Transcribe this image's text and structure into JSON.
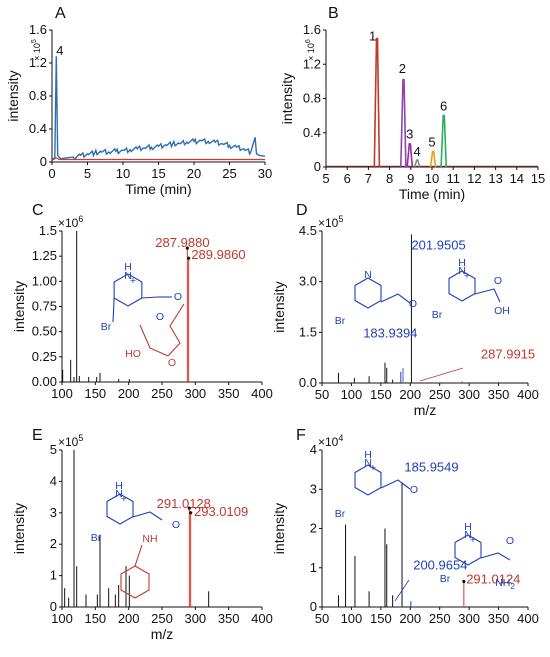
{
  "chart_data": [
    {
      "panel": "A",
      "type": "line",
      "xlabel": "Time (min)",
      "ylabel": "intensity",
      "multiplier": "× 10",
      "multiplier_exp": "5",
      "xlim": [
        0,
        30
      ],
      "ylim": [
        0,
        1.6
      ],
      "xticks": [
        0,
        5,
        10,
        15,
        20,
        25,
        30
      ],
      "yticks": [
        0,
        0.4,
        0.8,
        1.2,
        1.6
      ],
      "ytick_labels": [
        "0",
        "0.4",
        "0.8",
        "1.2",
        "1.6"
      ],
      "peak_labels": [
        {
          "text": "4",
          "x": 0.6,
          "y": 1.3
        }
      ],
      "series": [
        {
          "color": "#2a6fb5",
          "x": [
            0,
            0.4,
            0.6,
            0.8,
            1.2,
            2,
            3,
            4,
            5,
            6,
            7,
            8,
            9,
            10,
            11,
            12,
            13,
            14,
            15,
            16,
            17,
            18,
            19,
            20,
            21,
            22,
            23,
            24,
            25,
            26,
            27,
            28,
            28.6,
            28.8,
            29.2,
            30
          ],
          "y": [
            0.03,
            0.05,
            1.28,
            0.08,
            0.04,
            0.05,
            0.06,
            0.08,
            0.1,
            0.11,
            0.12,
            0.12,
            0.13,
            0.14,
            0.15,
            0.16,
            0.17,
            0.18,
            0.19,
            0.21,
            0.22,
            0.22,
            0.24,
            0.25,
            0.26,
            0.25,
            0.24,
            0.22,
            0.2,
            0.18,
            0.16,
            0.12,
            0.3,
            0.1,
            0.08,
            0.07
          ]
        },
        {
          "color": "#d03a2c",
          "x": [
            0,
            0.6,
            1,
            5,
            10,
            15,
            20,
            25,
            30
          ],
          "y": [
            0.02,
            0.05,
            0.03,
            0.03,
            0.03,
            0.03,
            0.03,
            0.03,
            0.03
          ]
        }
      ]
    },
    {
      "panel": "B",
      "type": "line",
      "xlabel": "Time (min)",
      "ylabel": "intensity",
      "multiplier": "× 10",
      "multiplier_exp": "6",
      "xlim": [
        5,
        15
      ],
      "ylim": [
        0,
        1.6
      ],
      "xticks": [
        5,
        6,
        7,
        8,
        9,
        10,
        11,
        12,
        13,
        14,
        15
      ],
      "yticks": [
        0,
        0.4,
        0.8,
        1.2,
        1.6
      ],
      "ytick_labels": [
        "0",
        "0.4",
        "0.8",
        "1.2",
        "1.6"
      ],
      "series": [
        {
          "label": "1",
          "color": "#c0392b",
          "center": 7.4,
          "height": 1.5,
          "label_x": 7.2,
          "label_y": 1.48
        },
        {
          "label": "2",
          "color": "#8e44ad",
          "center": 8.65,
          "height": 1.02,
          "label_x": 8.6,
          "label_y": 1.1
        },
        {
          "label": "3",
          "color": "#9b2d9b",
          "center": 8.95,
          "height": 0.27,
          "label_x": 8.95,
          "label_y": 0.33
        },
        {
          "label": "4",
          "color": "#7f8c8d",
          "center": 9.3,
          "height": 0.08,
          "label_x": 9.3,
          "label_y": 0.13
        },
        {
          "label": "5",
          "color": "#f39c12",
          "center": 10.05,
          "height": 0.18,
          "label_x": 10.0,
          "label_y": 0.24
        },
        {
          "label": "6",
          "color": "#27ae60",
          "center": 10.55,
          "height": 0.6,
          "label_x": 10.55,
          "label_y": 0.66
        }
      ]
    },
    {
      "panel": "C",
      "type": "bar",
      "xlabel": "",
      "ylabel": "intensity",
      "multiplier": "×10",
      "multiplier_exp": "6",
      "xlim": [
        100,
        400
      ],
      "ylim": [
        0,
        1.5
      ],
      "xticks": [
        100,
        150,
        200,
        250,
        300,
        350,
        400
      ],
      "yticks": [
        0,
        0.25,
        0.5,
        0.75,
        1.0,
        1.25,
        1.5
      ],
      "ytick_labels": [
        "0.00",
        "0.25",
        "0.50",
        "0.75",
        "1.00",
        "1.25",
        "1.5"
      ],
      "peaks": [
        {
          "mz": 101,
          "i": 0.12
        },
        {
          "mz": 113,
          "i": 0.22
        },
        {
          "mz": 118,
          "i": 0.05
        },
        {
          "mz": 122,
          "i": 1.5
        },
        {
          "mz": 126,
          "i": 0.06
        },
        {
          "mz": 140,
          "i": 0.05
        },
        {
          "mz": 152,
          "i": 0.05
        },
        {
          "mz": 157,
          "i": 0.09
        },
        {
          "mz": 185,
          "i": 0.03
        },
        {
          "mz": 201,
          "i": 0.03
        },
        {
          "mz": 287.988,
          "i": 1.33,
          "color": "#d03a2c"
        },
        {
          "mz": 289.986,
          "i": 1.23,
          "color": "#d03a2c"
        }
      ],
      "annotations": [
        {
          "text": "287.9880",
          "color": "#c0392b",
          "mz": 240,
          "i": 1.34
        },
        {
          "text": "289.9860",
          "color": "#c0392b",
          "mz": 294,
          "i": 1.22
        }
      ],
      "structure": {
        "color": "#1f3fbf",
        "sub_color": "#c0392b",
        "nh": "H",
        "n": "N",
        "plus": "+",
        "br": "Br",
        "o": "O",
        "ho": "HO"
      }
    },
    {
      "panel": "D",
      "type": "bar",
      "xlabel": "m/z",
      "ylabel": "intensity",
      "multiplier": "×10",
      "multiplier_exp": "5",
      "xlim": [
        50,
        400
      ],
      "ylim": [
        0,
        4.5
      ],
      "xticks": [
        50,
        100,
        150,
        200,
        250,
        300,
        350,
        400
      ],
      "yticks": [
        0,
        1.5,
        3.0,
        4.5
      ],
      "ytick_labels": [
        "0.0",
        "1.5",
        "3.0",
        "4.5"
      ],
      "peaks": [
        {
          "mz": 78,
          "i": 0.3
        },
        {
          "mz": 105,
          "i": 0.15
        },
        {
          "mz": 130,
          "i": 0.2
        },
        {
          "mz": 157,
          "i": 0.6
        },
        {
          "mz": 160,
          "i": 0.45
        },
        {
          "mz": 170,
          "i": 0.1
        },
        {
          "mz": 183.9394,
          "i": 0.33,
          "color": "#1f3fbf"
        },
        {
          "mz": 201.9505,
          "i": 4.4
        },
        {
          "mz": 287.9915,
          "i": 0.05,
          "color": "#d03a2c"
        }
      ],
      "annotations": [
        {
          "text": "201.9505",
          "color": "#1f3fbf",
          "mz": 202,
          "i": 3.95
        },
        {
          "text": "183.9394",
          "color": "#1f3fbf",
          "mz": 120,
          "i": 1.35
        },
        {
          "text": "287.9915",
          "color": "#c0392b",
          "mz": 320,
          "i": 0.72
        }
      ],
      "structure": {
        "color": "#1f3fbf",
        "n": "N",
        "nh": "H",
        "plus": "+",
        "br": "Br",
        "o": "O",
        "oh": "OH"
      }
    },
    {
      "panel": "E",
      "type": "bar",
      "xlabel": "m/z",
      "ylabel": "intensity",
      "multiplier": "×10",
      "multiplier_exp": "5",
      "xlim": [
        100,
        400
      ],
      "ylim": [
        0,
        5
      ],
      "xticks": [
        100,
        150,
        200,
        250,
        300,
        350,
        400
      ],
      "yticks": [
        0,
        1,
        2,
        3,
        4,
        5
      ],
      "ytick_labels": [
        "0",
        "1",
        "2",
        "3",
        "4",
        "5"
      ],
      "peaks": [
        {
          "mz": 104,
          "i": 0.6
        },
        {
          "mz": 110,
          "i": 0.3
        },
        {
          "mz": 118,
          "i": 5.0
        },
        {
          "mz": 122,
          "i": 1.3
        },
        {
          "mz": 136,
          "i": 0.4
        },
        {
          "mz": 153,
          "i": 0.4
        },
        {
          "mz": 157,
          "i": 2.3
        },
        {
          "mz": 170,
          "i": 0.6
        },
        {
          "mz": 180,
          "i": 0.4
        },
        {
          "mz": 185,
          "i": 0.7
        },
        {
          "mz": 196,
          "i": 1.3
        },
        {
          "mz": 201,
          "i": 1.0
        },
        {
          "mz": 291.0128,
          "i": 3.15,
          "color": "#d03a2c"
        },
        {
          "mz": 293.0109,
          "i": 3.0,
          "color": "#d03a2c"
        },
        {
          "mz": 320,
          "i": 0.5
        }
      ],
      "annotations": [
        {
          "text": "291.0128",
          "color": "#c0392b",
          "mz": 242,
          "i": 3.15
        },
        {
          "text": "293.0109",
          "color": "#c0392b",
          "mz": 298,
          "i": 2.9
        }
      ],
      "structure": {
        "color": "#1f3fbf",
        "sub_color": "#c0392b",
        "nh": "H",
        "n": "N",
        "plus": "+",
        "br": "Br",
        "o": "O",
        "nhlink": "NH"
      }
    },
    {
      "panel": "F",
      "type": "bar",
      "xlabel": "",
      "ylabel": "intensity",
      "multiplier": "×10",
      "multiplier_exp": "4",
      "xlim": [
        50,
        400
      ],
      "ylim": [
        0,
        4
      ],
      "xticks": [
        50,
        100,
        150,
        200,
        250,
        300,
        350,
        400
      ],
      "yticks": [
        0,
        1,
        2,
        3,
        4
      ],
      "ytick_labels": [
        "0",
        "1",
        "2",
        "3",
        "4"
      ],
      "peaks": [
        {
          "mz": 78,
          "i": 0.3
        },
        {
          "mz": 90,
          "i": 2.1
        },
        {
          "mz": 106,
          "i": 1.3
        },
        {
          "mz": 130,
          "i": 0.4
        },
        {
          "mz": 157,
          "i": 2.0
        },
        {
          "mz": 160,
          "i": 1.6
        },
        {
          "mz": 170,
          "i": 0.3
        },
        {
          "mz": 185.9549,
          "i": 3.15
        },
        {
          "mz": 200.9654,
          "i": 0.15,
          "color": "#1f3fbf"
        },
        {
          "mz": 291.0124,
          "i": 0.65,
          "color": "#d03a2c"
        }
      ],
      "annotations": [
        {
          "text": "185.9549",
          "color": "#1f3fbf",
          "mz": 190,
          "i": 3.45
        },
        {
          "text": "200.9654",
          "color": "#1f3fbf",
          "mz": 205,
          "i": 0.95
        },
        {
          "text": "291.0124",
          "color": "#c0392b",
          "mz": 295,
          "i": 0.6
        }
      ],
      "structure": {
        "color": "#1f3fbf",
        "nh": "H",
        "n": "N",
        "plus": "+",
        "br": "Br",
        "o": "O",
        "nh2": "NH",
        "nh2_sub": "2"
      }
    }
  ]
}
